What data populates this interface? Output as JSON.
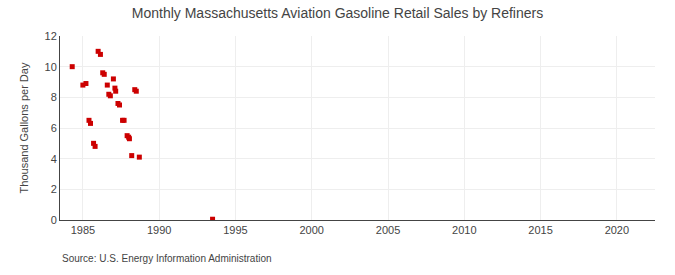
{
  "chart_data": {
    "type": "scatter",
    "title": "Monthly Massachusetts Aviation Gasoline Retail Sales by Refiners",
    "y_label": "Thousand Gallons per Day",
    "annotations": [
      "Source: U.S. Energy Information Administration"
    ],
    "x": [
      1984.3,
      1985.0,
      1985.2,
      1985.4,
      1985.5,
      1985.7,
      1985.8,
      1986.0,
      1986.15,
      1986.3,
      1986.4,
      1986.6,
      1986.7,
      1986.8,
      1987.0,
      1987.1,
      1987.15,
      1987.3,
      1987.4,
      1987.6,
      1987.7,
      1987.9,
      1988.0,
      1988.05,
      1988.2,
      1988.4,
      1988.5,
      1988.7,
      1993.5
    ],
    "values": [
      10.0,
      8.8,
      8.9,
      6.5,
      6.3,
      5.0,
      4.8,
      11.0,
      10.8,
      9.6,
      9.5,
      8.8,
      8.2,
      8.1,
      9.2,
      8.6,
      8.4,
      7.6,
      7.5,
      6.5,
      6.5,
      5.5,
      5.4,
      5.3,
      4.2,
      8.5,
      8.4,
      4.1,
      0.05
    ],
    "color": "#cc0000",
    "marker": "square",
    "xlim": [
      1983.5,
      2022.5
    ],
    "ylim": [
      0,
      12
    ],
    "xticks": [
      1985,
      1990,
      1995,
      2000,
      2005,
      2010,
      2015,
      2020
    ],
    "yticks": [
      0,
      2,
      4,
      6,
      8,
      10,
      12
    ],
    "grid": true
  }
}
